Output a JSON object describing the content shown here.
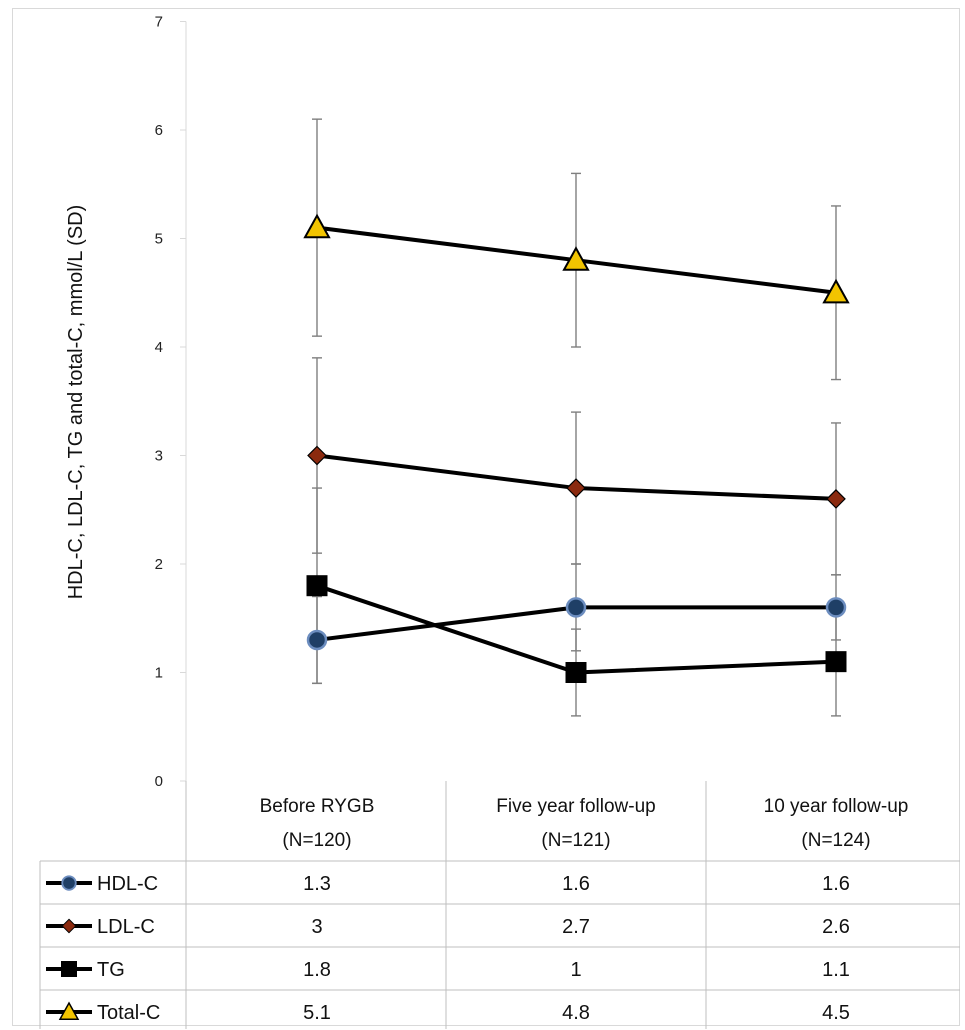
{
  "chart_data": {
    "type": "line",
    "ylabel": "HDL-C, LDL-C, TG and total-C, mmol/L (SD)",
    "ylim": [
      0,
      7
    ],
    "yticks": [
      0,
      1,
      2,
      3,
      4,
      5,
      6,
      7
    ],
    "grid": false,
    "categories": [
      {
        "line1": "Before RYGB",
        "line2": "(N=120)"
      },
      {
        "line1": "Five year follow-up",
        "line2": "(N=121)"
      },
      {
        "line1": "10 year follow-up",
        "line2": "(N=124)"
      }
    ],
    "series": [
      {
        "name": "HDL-C",
        "marker": "circle",
        "marker_fill": "#1F3F66",
        "marker_stroke": "#6C8DBF",
        "values": [
          1.3,
          1.6,
          1.6
        ],
        "sd": [
          0.4,
          0.4,
          0.3
        ],
        "labels": [
          "1.3",
          "1.6",
          "1.6"
        ]
      },
      {
        "name": "LDL-C",
        "marker": "diamond",
        "marker_fill": "#8B2A0F",
        "marker_stroke": "#000000",
        "values": [
          3.0,
          2.7,
          2.6
        ],
        "sd": [
          0.9,
          0.7,
          0.7
        ],
        "labels": [
          "3",
          "2.7",
          "2.6"
        ]
      },
      {
        "name": "TG",
        "marker": "square",
        "marker_fill": "#000000",
        "marker_stroke": "#000000",
        "values": [
          1.8,
          1.0,
          1.1
        ],
        "sd": [
          0.9,
          0.4,
          0.5
        ],
        "labels": [
          "1.8",
          "1",
          "1.1"
        ]
      },
      {
        "name": "Total-C",
        "marker": "triangle",
        "marker_fill": "#F2C400",
        "marker_stroke": "#000000",
        "values": [
          5.1,
          4.8,
          4.5
        ],
        "sd": [
          1.0,
          0.8,
          0.8
        ],
        "labels": [
          "5.1",
          "4.8",
          "4.5"
        ]
      }
    ],
    "colors": {
      "line": "#000000",
      "error_bar": "#7f7f7f",
      "table_border": "#bfbfbf",
      "axis": "#d9d9d9"
    }
  }
}
